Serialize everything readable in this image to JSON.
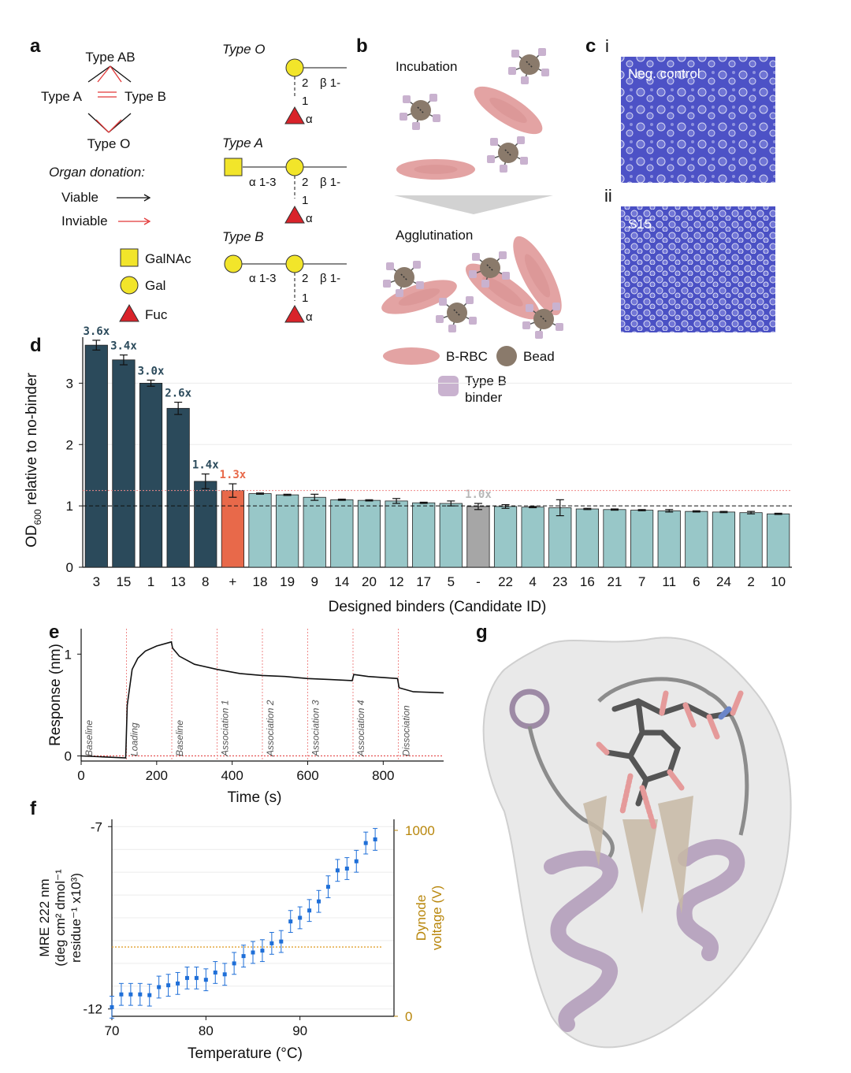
{
  "colors": {
    "dark_bar": "#2b4a5b",
    "control_bar": "#e8694a",
    "light_bar": "#98c7c8",
    "neg_bar": "#a6a6a6",
    "blue_point": "#1f6fd8",
    "gold": "#b8860b",
    "red_line": "#e23838",
    "pink_cell": "#e3a3a3",
    "bead": "#8a7a6b",
    "binder": "#c9b2cf",
    "yellow": "#f2e52a",
    "fuc_red": "#d9232a",
    "micro_blue": "#4a4fc2"
  },
  "panel_a": {
    "label": "a",
    "types": {
      "ab": "Type AB",
      "a": "Type A",
      "b": "Type B",
      "o": "Type O"
    },
    "organ_donation": "Organ donation:",
    "viable": "Viable",
    "inviable": "Inviable",
    "legend": {
      "galnac": "GalNAc",
      "gal": "Gal",
      "fuc": "Fuc"
    },
    "structures": [
      {
        "title": "Type O",
        "beta": "β 1-",
        "link2": "2",
        "link1": "1",
        "alpha": "α"
      },
      {
        "title": "Type A",
        "alpha13": "α 1-3",
        "beta": "β 1-",
        "link2": "2",
        "link1": "1",
        "alpha": "α"
      },
      {
        "title": "Type B",
        "alpha13": "α 1-3",
        "beta": "β 1-",
        "link2": "2",
        "link1": "1",
        "alpha": "α"
      }
    ]
  },
  "panel_b": {
    "label": "b",
    "incubation": "Incubation",
    "agglutination": "Agglutination",
    "legend": {
      "rbc": "B-RBC",
      "bead": "Bead",
      "binder_line1": "Type B",
      "binder_line2": "binder"
    }
  },
  "panel_c": {
    "label": "c",
    "sub_i": "i",
    "sub_ii": "ii",
    "neg_control": "Neg. control",
    "s15": "S15"
  },
  "panel_d": {
    "label": "d"
  },
  "panel_e": {
    "label": "e"
  },
  "panel_f": {
    "label": "f"
  },
  "panel_g": {
    "label": "g"
  },
  "chart_data": [
    {
      "id": "d",
      "type": "bar",
      "ylabel_main": "OD",
      "ylabel_sub": "600",
      "ylabel_rest": " relative to no-binder",
      "xlabel": "Designed binders (Candidate ID)",
      "ylim": [
        0,
        3.75
      ],
      "yticks": [
        "0",
        "1",
        "2",
        "3"
      ],
      "categories": [
        "3",
        "15",
        "1",
        "13",
        "8",
        "+",
        "18",
        "19",
        "9",
        "14",
        "20",
        "12",
        "17",
        "5",
        "-",
        "22",
        "4",
        "23",
        "16",
        "21",
        "7",
        "11",
        "6",
        "24",
        "2",
        "10"
      ],
      "values": [
        3.62,
        3.38,
        3.0,
        2.59,
        1.4,
        1.25,
        1.2,
        1.18,
        1.14,
        1.1,
        1.09,
        1.08,
        1.05,
        1.04,
        0.99,
        0.99,
        0.98,
        0.97,
        0.95,
        0.94,
        0.93,
        0.92,
        0.91,
        0.9,
        0.89,
        0.87
      ],
      "errors": [
        0.08,
        0.08,
        0.05,
        0.1,
        0.12,
        0.11,
        0.01,
        0.01,
        0.05,
        0.01,
        0.01,
        0.04,
        0.01,
        0.04,
        0.05,
        0.03,
        0.01,
        0.13,
        0.01,
        0.01,
        0.01,
        0.02,
        0.01,
        0.01,
        0.02,
        0.01
      ],
      "kinds": [
        "top",
        "top",
        "top",
        "top",
        "top",
        "pos",
        "rest",
        "rest",
        "rest",
        "rest",
        "rest",
        "rest",
        "rest",
        "rest",
        "neg",
        "rest",
        "rest",
        "rest",
        "rest",
        "rest",
        "rest",
        "rest",
        "rest",
        "rest",
        "rest",
        "rest"
      ],
      "annotations": [
        "3.6x",
        "3.4x",
        "3.0x",
        "2.6x",
        "1.4x",
        "1.3x",
        "",
        "",
        "",
        "",
        "",
        "",
        "",
        "",
        "1.0x",
        "",
        "",
        "",
        "",
        "",
        "",
        "",
        "",
        "",
        "",
        ""
      ],
      "ref_lines": {
        "no_binder": 1.0,
        "positive_control": 1.25
      }
    },
    {
      "id": "e",
      "type": "line",
      "xlabel": "Time (s)",
      "ylabel": "Response (nm)",
      "xlim": [
        0,
        960
      ],
      "ylim": [
        -0.05,
        1.25
      ],
      "xticks": [
        "0",
        "200",
        "400",
        "600",
        "800"
      ],
      "yticks": [
        "0",
        "1"
      ],
      "step_boundaries": [
        120,
        240,
        360,
        480,
        600,
        720,
        840
      ],
      "steps": [
        "Baseline",
        "Loading",
        "Baseline",
        "Association 1",
        "Association 2",
        "Association 3",
        "Association 4",
        "Dissociation"
      ],
      "x": [
        0,
        60,
        118,
        122,
        135,
        150,
        170,
        200,
        239,
        242,
        260,
        300,
        360,
        420,
        480,
        540,
        600,
        660,
        718,
        722,
        760,
        838,
        842,
        880,
        960
      ],
      "y": [
        0.0,
        -0.01,
        -0.02,
        0.5,
        0.85,
        0.96,
        1.03,
        1.08,
        1.12,
        1.06,
        0.98,
        0.9,
        0.85,
        0.81,
        0.79,
        0.78,
        0.76,
        0.75,
        0.74,
        0.8,
        0.78,
        0.76,
        0.67,
        0.63,
        0.62
      ]
    },
    {
      "id": "f",
      "type": "scatter",
      "xlabel": "Temperature (°C)",
      "ylabel_line1": "MRE 222 nm",
      "ylabel_line2": "(deg cm² dmol⁻¹",
      "ylabel_line3": "residue⁻¹ x10³)",
      "y2label_line1": "Dynode",
      "y2label_line2": "voltage (V)",
      "xlim": [
        70,
        100
      ],
      "ylim": [
        -12.2,
        -6.8
      ],
      "xticks": [
        "70",
        "80",
        "90"
      ],
      "yticks": [
        "-7",
        "-12"
      ],
      "y2ticks": [
        "1000",
        "0"
      ],
      "x": [
        70,
        71,
        72,
        73,
        74,
        75,
        76,
        77,
        78,
        79,
        80,
        81,
        82,
        83,
        84,
        85,
        86,
        87,
        88,
        89,
        90,
        91,
        92,
        93,
        94,
        95,
        96,
        97,
        98
      ],
      "y": [
        -11.95,
        -11.6,
        -11.6,
        -11.6,
        -11.62,
        -11.4,
        -11.35,
        -11.3,
        -11.15,
        -11.15,
        -11.2,
        -11.0,
        -11.05,
        -10.75,
        -10.55,
        -10.45,
        -10.4,
        -10.2,
        -10.15,
        -9.6,
        -9.5,
        -9.3,
        -9.05,
        -8.65,
        -8.2,
        -8.15,
        -7.95,
        -7.45,
        -7.35
      ],
      "err": 0.3,
      "dynode_y": -10.3
    }
  ]
}
